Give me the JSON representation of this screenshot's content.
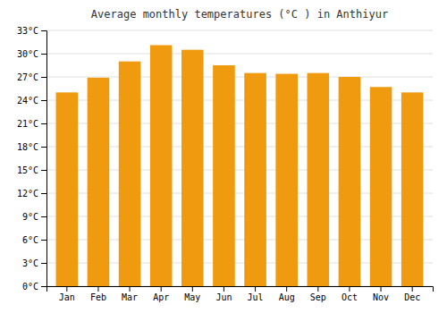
{
  "chart_data": {
    "type": "bar",
    "title": "Average monthly temperatures (°C ) in Anthiyur",
    "categories": [
      "Jan",
      "Feb",
      "Mar",
      "Apr",
      "May",
      "Jun",
      "Jul",
      "Aug",
      "Sep",
      "Oct",
      "Nov",
      "Dec"
    ],
    "values": [
      25.0,
      26.9,
      29.0,
      31.1,
      30.5,
      28.5,
      27.5,
      27.4,
      27.5,
      27.0,
      25.7,
      25.0
    ],
    "color": "#F09A10",
    "ylim": [
      0,
      33
    ],
    "yticks": [
      {
        "value": 0,
        "label": "0°C"
      },
      {
        "value": 3,
        "label": "3°C"
      },
      {
        "value": 6,
        "label": "6°C"
      },
      {
        "value": 9,
        "label": "9°C"
      },
      {
        "value": 12,
        "label": "12°C"
      },
      {
        "value": 15,
        "label": "15°C"
      },
      {
        "value": 18,
        "label": "18°C"
      },
      {
        "value": 21,
        "label": "21°C"
      },
      {
        "value": 24,
        "label": "24°C"
      },
      {
        "value": 27,
        "label": "27°C"
      },
      {
        "value": 30,
        "label": "30°C"
      },
      {
        "value": 33,
        "label": "33°C"
      }
    ],
    "grid": true
  }
}
